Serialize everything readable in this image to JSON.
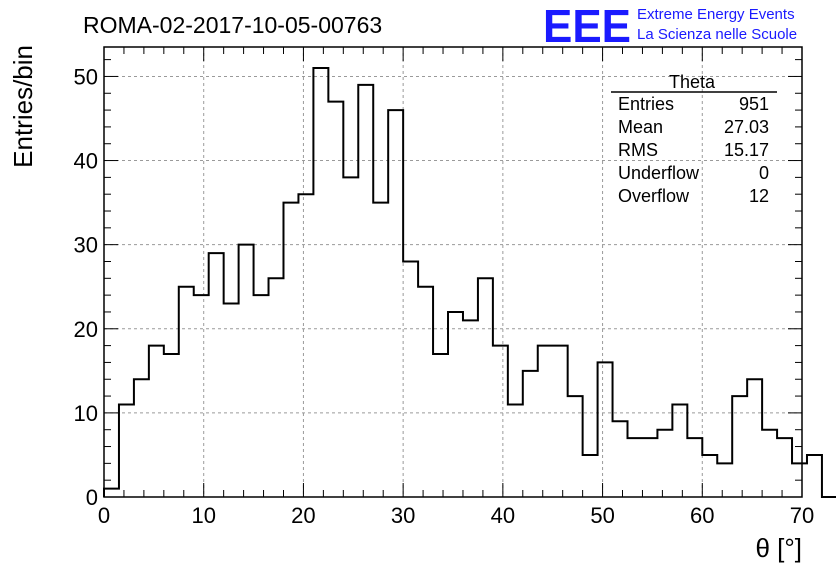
{
  "chart_data": {
    "type": "bar",
    "title": "ROMA-02-2017-10-05-00763",
    "xlabel": "θ [°]",
    "ylabel": "Entries/bin",
    "xlim": [
      0,
      70
    ],
    "ylim": [
      0,
      53.5
    ],
    "x_ticks": [
      0,
      10,
      20,
      30,
      40,
      50,
      60,
      70
    ],
    "y_ticks": [
      0,
      10,
      20,
      30,
      40,
      50
    ],
    "grid": true,
    "bin_width": 1.5,
    "bins_start": 0,
    "values": [
      1,
      11,
      14,
      18,
      17,
      25,
      24,
      29,
      23,
      30,
      24,
      26,
      35,
      36,
      51,
      47,
      38,
      49,
      35,
      46,
      28,
      25,
      17,
      22,
      21,
      26,
      18,
      11,
      15,
      18,
      18,
      12,
      5,
      16,
      9,
      7,
      7,
      8,
      11,
      7,
      5,
      4,
      12,
      14,
      8,
      7,
      4,
      5,
      0
    ],
    "stats": {
      "name": "Theta",
      "rows": [
        {
          "label": "Entries",
          "value": "951"
        },
        {
          "label": "Mean",
          "value": "27.03"
        },
        {
          "label": "RMS",
          "value": "15.17"
        },
        {
          "label": "Underflow",
          "value": "0"
        },
        {
          "label": "Overflow",
          "value": "12"
        }
      ]
    }
  },
  "logo": {
    "mark": "EEE",
    "line1": "Extreme Energy Events",
    "line2": "La Scienza nelle Scuole",
    "color": "#1a1aff"
  },
  "colors": {
    "histogram_line": "#000000",
    "grid": "#9a9a9a",
    "axes": "#000000"
  }
}
